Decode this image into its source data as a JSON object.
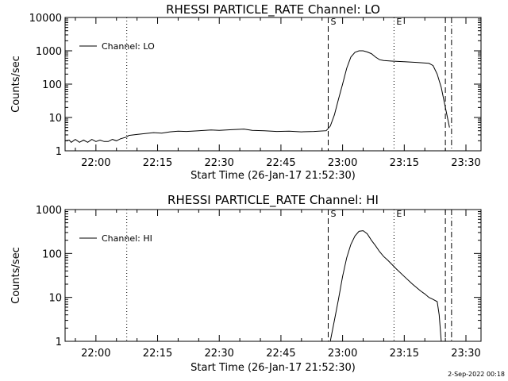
{
  "footer_date": "2-Sep-2022 00:18",
  "chart_data": [
    {
      "type": "line",
      "title": "RHESSI PARTICLE_RATE Channel: LO",
      "xlabel": "Start Time (26-Jan-17 21:52:30)",
      "ylabel": "Counts/sec",
      "yscale": "log",
      "ylim": [
        1,
        10000
      ],
      "y_ticks": [
        {
          "value": 1,
          "label": "1"
        },
        {
          "value": 10,
          "label": "10"
        },
        {
          "value": 100,
          "label": "100"
        },
        {
          "value": 1000,
          "label": "1000"
        },
        {
          "value": 10000,
          "label": "10000"
        }
      ],
      "x_ticks": [
        "22:00",
        "22:15",
        "22:30",
        "22:45",
        "23:00",
        "23:15",
        "23:30"
      ],
      "markers": [
        {
          "label": "S",
          "time": "22:56:30",
          "style": "dashed"
        },
        {
          "label": "E",
          "time": "23:12:30",
          "style": "dotted"
        },
        {
          "label": "",
          "time": "22:07:30",
          "style": "dotted"
        },
        {
          "label": "",
          "time": "23:25:00",
          "style": "dashed"
        },
        {
          "label": "",
          "time": "23:26:30",
          "style": "dashdot"
        }
      ],
      "legend": {
        "label": "Channel: LO",
        "position": "top-left"
      },
      "series": [
        {
          "name": "Channel: LO",
          "points": [
            [
              "21:52:30",
              2
            ],
            [
              "21:53:30",
              2.1
            ],
            [
              "21:54:00",
              1.8
            ],
            [
              "21:55:00",
              2.2
            ],
            [
              "21:56:00",
              1.8
            ],
            [
              "21:57:00",
              2.1
            ],
            [
              "21:58:00",
              1.8
            ],
            [
              "21:59:00",
              2.2
            ],
            [
              "22:00:00",
              1.9
            ],
            [
              "22:01:00",
              2.1
            ],
            [
              "22:02:00",
              1.9
            ],
            [
              "22:03:00",
              1.9
            ],
            [
              "22:04:00",
              2.2
            ],
            [
              "22:05:00",
              2.0
            ],
            [
              "22:06:00",
              2.3
            ],
            [
              "22:07:30",
              2.6
            ],
            [
              "22:08:00",
              2.9
            ],
            [
              "22:10:00",
              3.1
            ],
            [
              "22:12:00",
              3.3
            ],
            [
              "22:14:00",
              3.5
            ],
            [
              "22:16:00",
              3.4
            ],
            [
              "22:18:00",
              3.7
            ],
            [
              "22:20:00",
              3.9
            ],
            [
              "22:22:00",
              3.8
            ],
            [
              "22:25:00",
              4.0
            ],
            [
              "22:28:00",
              4.2
            ],
            [
              "22:30:00",
              4.1
            ],
            [
              "22:33:00",
              4.3
            ],
            [
              "22:36:00",
              4.5
            ],
            [
              "22:38:00",
              4.1
            ],
            [
              "22:41:00",
              4.0
            ],
            [
              "22:44:00",
              3.8
            ],
            [
              "22:47:00",
              3.9
            ],
            [
              "22:50:00",
              3.7
            ],
            [
              "22:53:00",
              3.8
            ],
            [
              "22:56:00",
              4.0
            ],
            [
              "22:57:00",
              5.5
            ],
            [
              "22:58:00",
              12
            ],
            [
              "22:59:00",
              35
            ],
            [
              "23:00:00",
              100
            ],
            [
              "23:01:00",
              300
            ],
            [
              "23:02:00",
              650
            ],
            [
              "23:03:00",
              900
            ],
            [
              "23:04:00",
              1000
            ],
            [
              "23:05:00",
              1000
            ],
            [
              "23:06:00",
              920
            ],
            [
              "23:07:00",
              820
            ],
            [
              "23:08:00",
              650
            ],
            [
              "23:09:00",
              540
            ],
            [
              "23:10:00",
              510
            ],
            [
              "23:12:00",
              490
            ],
            [
              "23:15:00",
              470
            ],
            [
              "23:18:00",
              450
            ],
            [
              "23:21:00",
              420
            ],
            [
              "23:22:00",
              360
            ],
            [
              "23:23:00",
              200
            ],
            [
              "23:24:00",
              80
            ],
            [
              "23:25:00",
              20
            ],
            [
              "23:26:00",
              5
            ]
          ]
        }
      ]
    },
    {
      "type": "line",
      "title": "RHESSI PARTICLE_RATE Channel: HI",
      "xlabel": "Start Time (26-Jan-17 21:52:30)",
      "ylabel": "Counts/sec",
      "yscale": "log",
      "ylim": [
        1,
        1000
      ],
      "y_ticks": [
        {
          "value": 1,
          "label": "1"
        },
        {
          "value": 10,
          "label": "10"
        },
        {
          "value": 100,
          "label": "100"
        },
        {
          "value": 1000,
          "label": "1000"
        }
      ],
      "x_ticks": [
        "22:00",
        "22:15",
        "22:30",
        "22:45",
        "23:00",
        "23:15",
        "23:30"
      ],
      "markers": [
        {
          "label": "S",
          "time": "22:56:30",
          "style": "dashed"
        },
        {
          "label": "E",
          "time": "23:12:30",
          "style": "dotted"
        },
        {
          "label": "",
          "time": "22:07:30",
          "style": "dotted"
        },
        {
          "label": "",
          "time": "23:25:00",
          "style": "dashed"
        },
        {
          "label": "",
          "time": "23:26:30",
          "style": "dashdot"
        }
      ],
      "legend": {
        "label": "Channel: HI",
        "position": "top-left"
      },
      "series": [
        {
          "name": "Channel: HI",
          "points": [
            [
              "22:57:00",
              1
            ],
            [
              "22:58:00",
              3
            ],
            [
              "22:59:00",
              9
            ],
            [
              "23:00:00",
              30
            ],
            [
              "23:01:00",
              80
            ],
            [
              "23:02:00",
              160
            ],
            [
              "23:03:00",
              250
            ],
            [
              "23:04:00",
              320
            ],
            [
              "23:05:00",
              330
            ],
            [
              "23:06:00",
              280
            ],
            [
              "23:07:00",
              200
            ],
            [
              "23:08:00",
              150
            ],
            [
              "23:09:00",
              110
            ],
            [
              "23:10:00",
              85
            ],
            [
              "23:11:00",
              70
            ],
            [
              "23:13:00",
              45
            ],
            [
              "23:15:00",
              30
            ],
            [
              "23:17:00",
              20
            ],
            [
              "23:19:00",
              14
            ],
            [
              "23:20:00",
              12
            ],
            [
              "23:21:00",
              10
            ],
            [
              "23:22:00",
              9
            ],
            [
              "23:23:00",
              8
            ],
            [
              "23:23:30",
              4
            ],
            [
              "23:24:00",
              1
            ]
          ]
        }
      ]
    }
  ]
}
